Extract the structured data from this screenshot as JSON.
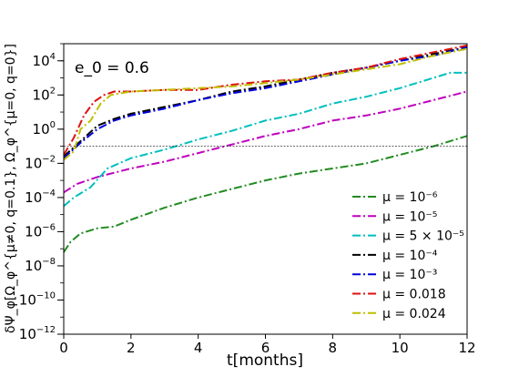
{
  "chart_data": {
    "type": "line",
    "annotation": "e_0 = 0.6",
    "xlabel": "t[months]",
    "ylabel": "δΨ_φ[Ω_φ^{μ≠0, q=0.1}, Ω_φ^{μ=0, q=0}]",
    "xlim": [
      0,
      12
    ],
    "ylim_log10": [
      -12,
      5
    ],
    "y_scale": "log",
    "grid": false,
    "legend_position": "lower-right",
    "x_ticks": [
      0,
      2,
      4,
      6,
      8,
      10,
      12
    ],
    "x_tick_labels": [
      "0",
      "2",
      "4",
      "6",
      "8",
      "10",
      "12"
    ],
    "y_ticks_log10": [
      -12,
      -10,
      -8,
      -6,
      -4,
      -2,
      0,
      2,
      4
    ],
    "y_tick_labels": [
      {
        "base": "10",
        "exp": "−12"
      },
      {
        "base": "10",
        "exp": "−10"
      },
      {
        "base": "10",
        "exp": "−8"
      },
      {
        "base": "10",
        "exp": "−6"
      },
      {
        "base": "10",
        "exp": "−4"
      },
      {
        "base": "10",
        "exp": "−2"
      },
      {
        "base": "10",
        "exp": "0"
      },
      {
        "base": "10",
        "exp": "2"
      },
      {
        "base": "10",
        "exp": "4"
      }
    ],
    "reference_line_y": 0.1,
    "series": [
      {
        "name": "μ = 10⁻⁶",
        "color": "#228B22",
        "points": [
          [
            0.0,
            -7.2
          ],
          [
            0.2,
            -6.6
          ],
          [
            0.5,
            -6.1
          ],
          [
            1.0,
            -5.8
          ],
          [
            1.5,
            -5.7
          ],
          [
            2.0,
            -5.3
          ],
          [
            3.0,
            -4.6
          ],
          [
            4.0,
            -4.0
          ],
          [
            5.0,
            -3.5
          ],
          [
            6.0,
            -3.0
          ],
          [
            7.0,
            -2.6
          ],
          [
            8.0,
            -2.3
          ],
          [
            9.0,
            -2.0
          ],
          [
            10.0,
            -1.5
          ],
          [
            11.0,
            -1.0
          ],
          [
            12.0,
            -0.4
          ]
        ]
      },
      {
        "name": "μ = 10⁻⁵",
        "color": "#BF00BF",
        "points": [
          [
            0.0,
            -3.7
          ],
          [
            0.4,
            -3.2
          ],
          [
            1.0,
            -2.8
          ],
          [
            2.0,
            -2.3
          ],
          [
            3.0,
            -1.9
          ],
          [
            4.0,
            -1.4
          ],
          [
            5.0,
            -0.9
          ],
          [
            6.0,
            -0.4
          ],
          [
            7.0,
            0.0
          ],
          [
            8.0,
            0.5
          ],
          [
            9.0,
            0.8
          ],
          [
            10.0,
            1.2
          ],
          [
            11.0,
            1.7
          ],
          [
            12.0,
            2.2
          ]
        ]
      },
      {
        "name": "μ = 5 × 10⁻⁵",
        "color": "#00BFBF",
        "points": [
          [
            0.0,
            -4.5
          ],
          [
            0.3,
            -4.0
          ],
          [
            0.8,
            -3.4
          ],
          [
            1.3,
            -2.3
          ],
          [
            2.0,
            -1.7
          ],
          [
            3.0,
            -1.2
          ],
          [
            4.0,
            -0.6
          ],
          [
            5.0,
            -0.1
          ],
          [
            6.0,
            0.5
          ],
          [
            7.0,
            0.9
          ],
          [
            8.0,
            1.5
          ],
          [
            9.0,
            1.9
          ],
          [
            10.0,
            2.4
          ],
          [
            11.0,
            3.0
          ],
          [
            11.5,
            3.3
          ],
          [
            12.0,
            3.3
          ]
        ]
      },
      {
        "name": "μ = 10⁻⁴",
        "color": "#000000",
        "points": [
          [
            0.0,
            -1.6
          ],
          [
            0.5,
            -0.7
          ],
          [
            1.0,
            0.2
          ],
          [
            1.5,
            0.6
          ],
          [
            2.0,
            0.9
          ],
          [
            3.0,
            1.3
          ],
          [
            4.0,
            1.7
          ],
          [
            5.0,
            2.2
          ],
          [
            6.0,
            2.5
          ],
          [
            7.0,
            2.9
          ],
          [
            8.0,
            3.3
          ],
          [
            9.0,
            3.6
          ],
          [
            10.0,
            4.0
          ],
          [
            11.0,
            4.4
          ],
          [
            12.0,
            4.8
          ]
        ]
      },
      {
        "name": "μ = 10⁻³",
        "color": "#0000DD",
        "points": [
          [
            0.0,
            -1.7
          ],
          [
            0.5,
            -0.8
          ],
          [
            1.0,
            0.0
          ],
          [
            1.5,
            0.5
          ],
          [
            2.0,
            0.8
          ],
          [
            3.0,
            1.2
          ],
          [
            4.0,
            1.7
          ],
          [
            5.0,
            2.1
          ],
          [
            6.0,
            2.4
          ],
          [
            7.0,
            2.8
          ],
          [
            8.0,
            3.2
          ],
          [
            9.0,
            3.6
          ],
          [
            10.0,
            4.0
          ],
          [
            11.0,
            4.3
          ],
          [
            12.0,
            4.8
          ]
        ]
      },
      {
        "name": "μ = 0.018",
        "color": "#DD1111",
        "points": [
          [
            0.0,
            -1.5
          ],
          [
            0.3,
            -0.5
          ],
          [
            0.6,
            0.8
          ],
          [
            0.9,
            1.6
          ],
          [
            1.2,
            2.0
          ],
          [
            1.5,
            2.2
          ],
          [
            2.0,
            2.2
          ],
          [
            3.0,
            2.3
          ],
          [
            4.0,
            2.3
          ],
          [
            5.0,
            2.6
          ],
          [
            6.0,
            2.8
          ],
          [
            7.0,
            2.9
          ],
          [
            8.0,
            3.3
          ],
          [
            9.0,
            3.6
          ],
          [
            10.0,
            4.1
          ],
          [
            11.0,
            4.5
          ],
          [
            12.0,
            4.9
          ]
        ]
      },
      {
        "name": "μ = 0.024",
        "color": "#BFBF00",
        "points": [
          [
            0.0,
            -1.8
          ],
          [
            0.3,
            -1.3
          ],
          [
            0.5,
            0.0
          ],
          [
            0.8,
            0.5
          ],
          [
            1.1,
            1.5
          ],
          [
            1.4,
            2.0
          ],
          [
            2.0,
            2.2
          ],
          [
            3.0,
            2.3
          ],
          [
            4.0,
            2.4
          ],
          [
            5.0,
            2.5
          ],
          [
            6.0,
            2.7
          ],
          [
            7.0,
            2.9
          ],
          [
            8.0,
            3.2
          ],
          [
            9.0,
            3.5
          ],
          [
            10.0,
            3.8
          ],
          [
            11.0,
            4.3
          ],
          [
            12.0,
            4.7
          ]
        ]
      }
    ]
  }
}
